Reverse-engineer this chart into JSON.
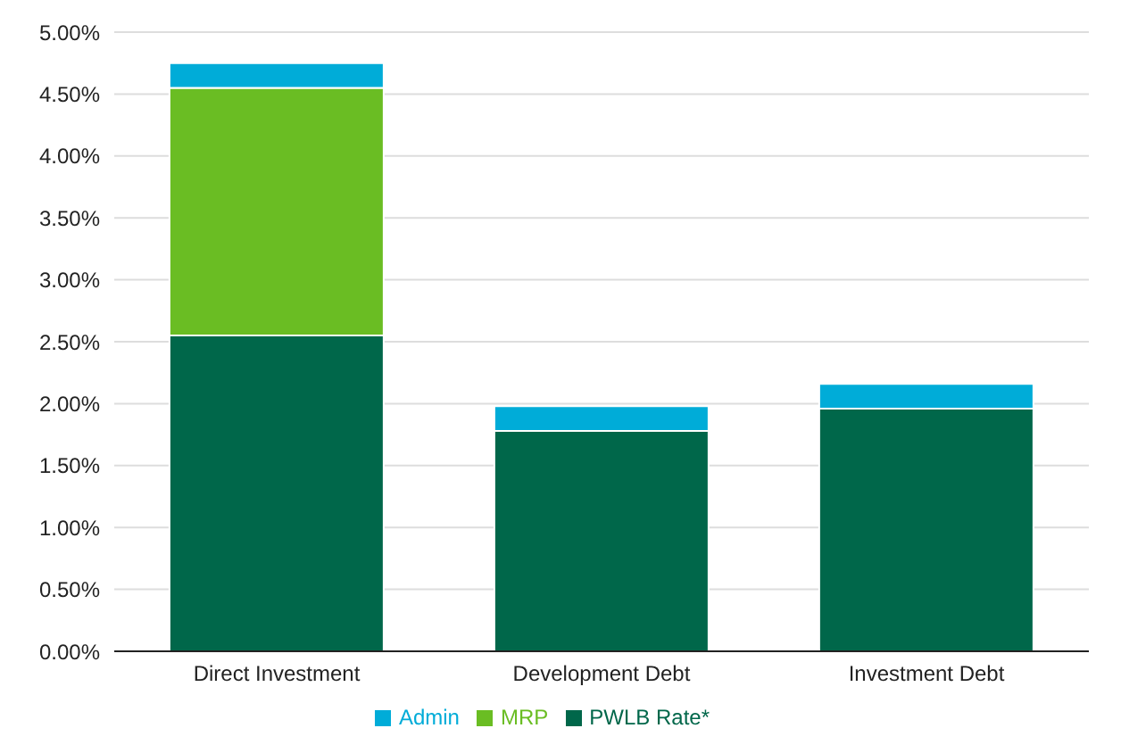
{
  "chart_data": {
    "type": "bar",
    "stacked": true,
    "categories": [
      "Direct Investment",
      "Development Debt",
      "Investment Debt"
    ],
    "series": [
      {
        "name": "PWLB Rate*",
        "color": "#00674a",
        "values": [
          2.55,
          1.78,
          1.96
        ]
      },
      {
        "name": "MRP",
        "color": "#6abd23",
        "values": [
          2.0,
          null,
          null
        ]
      },
      {
        "name": "Admin",
        "color": "#00acd8",
        "values": [
          0.2,
          0.2,
          0.2
        ]
      }
    ],
    "ylim": [
      0,
      5
    ],
    "yticks": [
      {
        "value": 0,
        "label": "0.00%"
      },
      {
        "value": 0.5,
        "label": "0.50%"
      },
      {
        "value": 1,
        "label": "1.00%"
      },
      {
        "value": 1.5,
        "label": "1.50%"
      },
      {
        "value": 2,
        "label": "2.00%"
      },
      {
        "value": 2.5,
        "label": "2.50%"
      },
      {
        "value": 3,
        "label": "3.00%"
      },
      {
        "value": 3.5,
        "label": "3.50%"
      },
      {
        "value": 4,
        "label": "4.00%"
      },
      {
        "value": 4.5,
        "label": "4.50%"
      },
      {
        "value": 5,
        "label": "5.00%"
      }
    ],
    "grid": "y",
    "legend": "bottom"
  }
}
